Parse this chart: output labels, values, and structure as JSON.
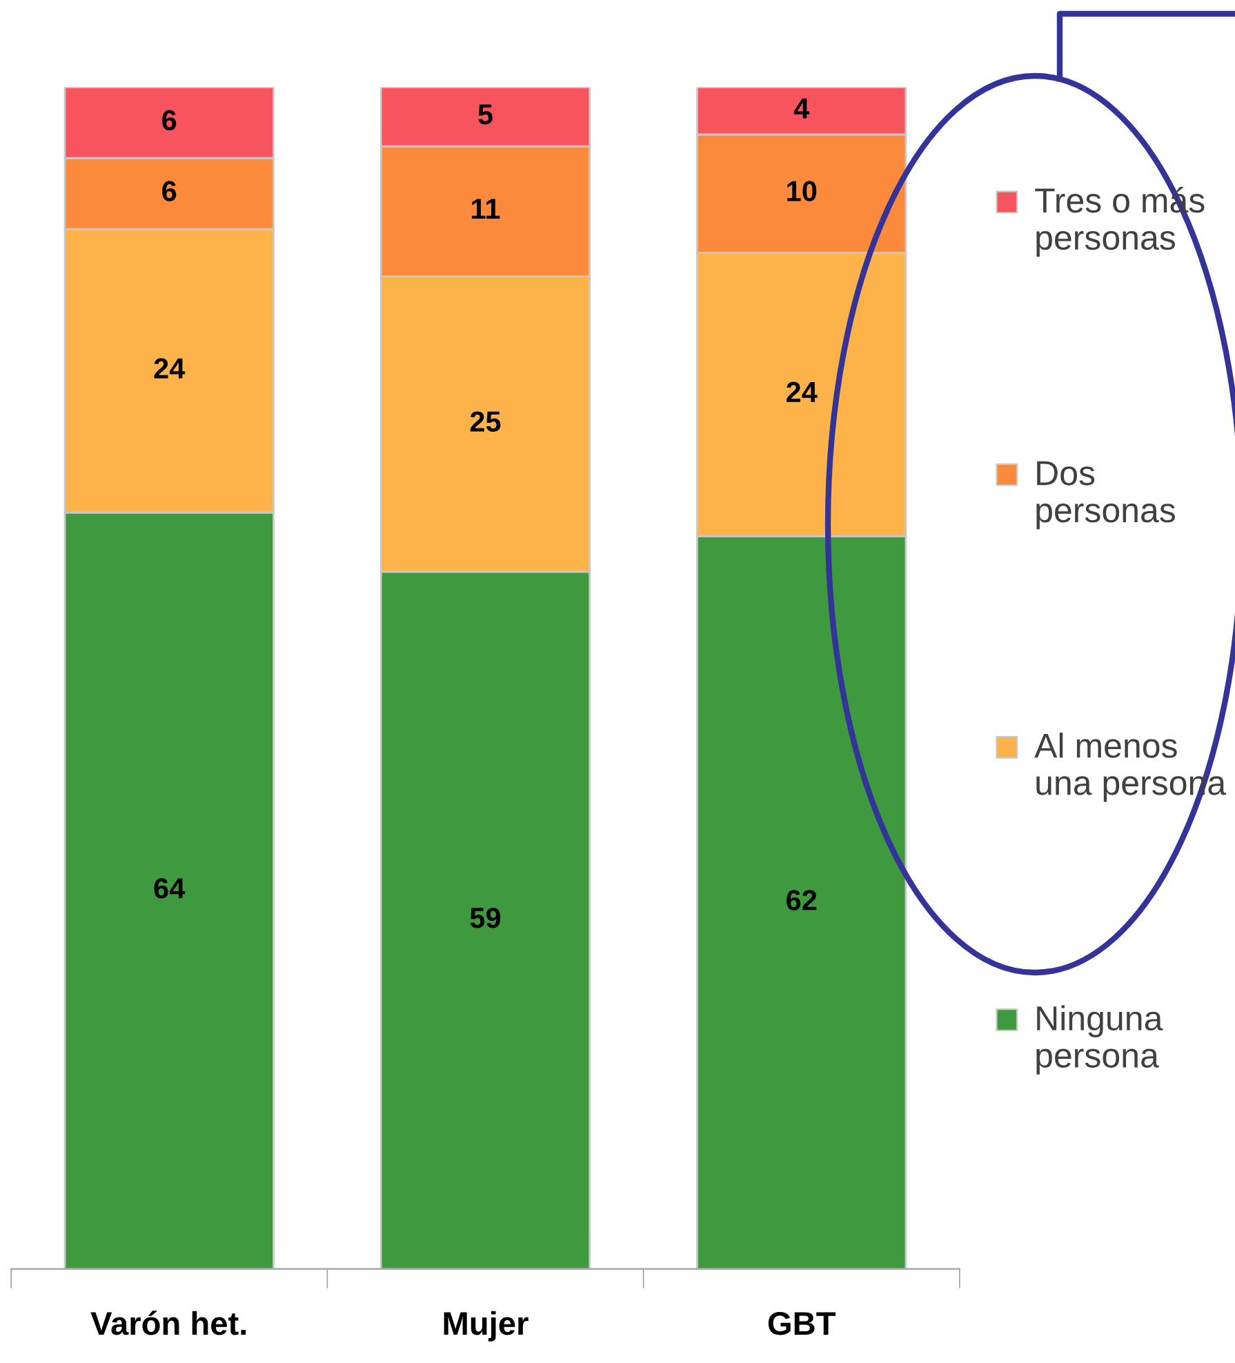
{
  "chart_data": {
    "type": "bar",
    "stacked": true,
    "data_labels": true,
    "legend": "right",
    "grid": false,
    "categories": [
      "Varón het.",
      "Mujer",
      "GBT"
    ],
    "series": [
      {
        "name": "Ninguna persona",
        "color": "#3f9a3f",
        "values": [
          64,
          59,
          62
        ]
      },
      {
        "name": "Al menos una persona",
        "color": "#fdb34a",
        "values": [
          24,
          25,
          24
        ]
      },
      {
        "name": "Dos personas",
        "color": "#fb8a3c",
        "values": [
          6,
          11,
          10
        ]
      },
      {
        "name": "Tres o más personas",
        "color": "#f7545e",
        "values": [
          6,
          5,
          4
        ]
      }
    ]
  }
}
